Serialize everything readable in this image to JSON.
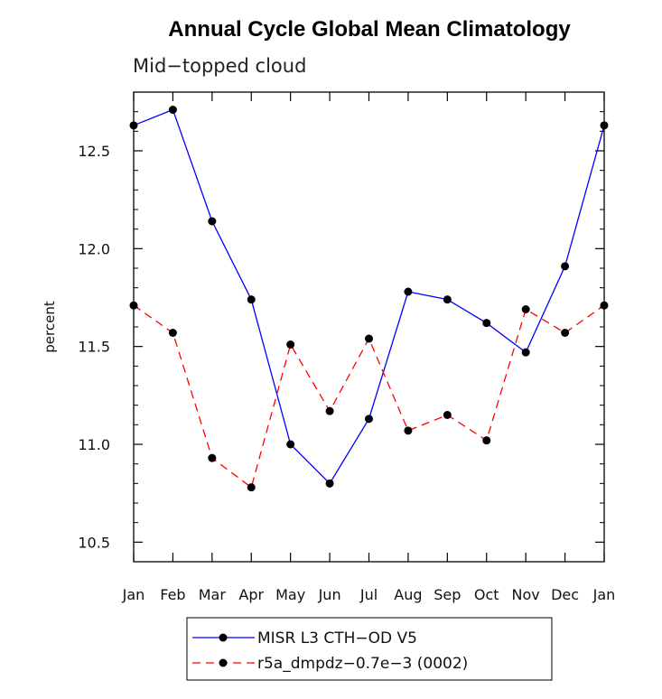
{
  "chart_data": {
    "type": "line",
    "title": "Annual Cycle Global Mean Climatology",
    "subtitle": "Mid−topped cloud",
    "xlabel": "",
    "ylabel": "percent",
    "categories": [
      "Jan",
      "Feb",
      "Mar",
      "Apr",
      "May",
      "Jun",
      "Jul",
      "Aug",
      "Sep",
      "Oct",
      "Nov",
      "Dec",
      "Jan"
    ],
    "ylim": [
      10.4,
      12.8
    ],
    "yticks": [
      "10.5",
      "11.0",
      "11.5",
      "12.0",
      "12.5"
    ],
    "grid": false,
    "legend_position": "bottom-center",
    "series": [
      {
        "name": "MISR L3 CTH−OD V5",
        "color": "#0000ff",
        "dash": "solid",
        "marker": "circle",
        "values": [
          12.63,
          12.71,
          12.14,
          11.74,
          11.0,
          10.8,
          11.13,
          11.78,
          11.74,
          11.62,
          11.47,
          11.91,
          12.63
        ]
      },
      {
        "name": "r5a_dmpdz−0.7e−3 (0002)",
        "color": "#ff0000",
        "dash": "dashed",
        "marker": "circle",
        "values": [
          11.71,
          11.57,
          10.93,
          10.78,
          11.51,
          11.17,
          11.54,
          11.07,
          11.15,
          11.02,
          11.69,
          11.57,
          11.71
        ]
      }
    ]
  }
}
